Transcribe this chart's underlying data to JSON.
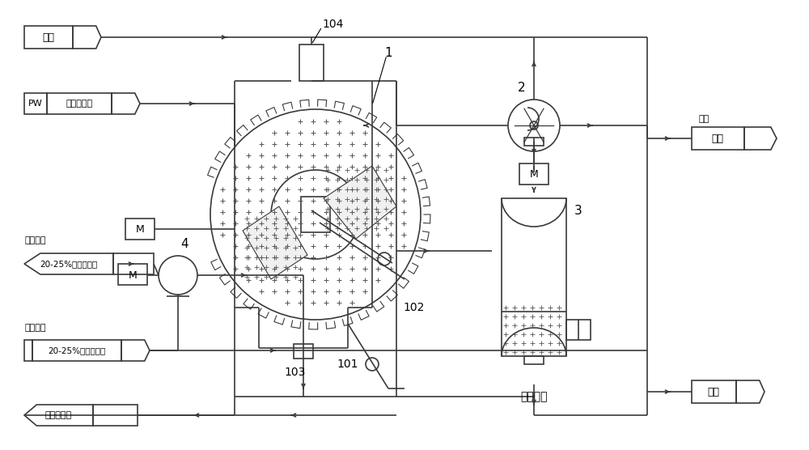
{
  "background_color": "#ffffff",
  "line_color": "#3a3a3a",
  "text_color": "#000000",
  "figsize": [
    10.0,
    5.56
  ],
  "dpi": 100,
  "labels": {
    "air_in": "空气",
    "pw": "PW",
    "pw_sub": "滤布清洗水",
    "motor_drum": "M",
    "motor_fan": "M",
    "motor_pump": "M",
    "comp1_title": "去污水槽",
    "comp1_sub": "20-25%气化渣浆料",
    "comp2_title": "自污水槽",
    "comp2_sub": "20-25%气化渣浆料",
    "comp3": "气化渣浆料",
    "air_out_label": "排空",
    "air_out": "空气",
    "filtrate": "滤液",
    "backwash": "反吹气体",
    "n1": "1",
    "n2": "2",
    "n3": "3",
    "n4": "4",
    "n101": "101",
    "n102": "102",
    "n103": "103",
    "n104": "104"
  }
}
